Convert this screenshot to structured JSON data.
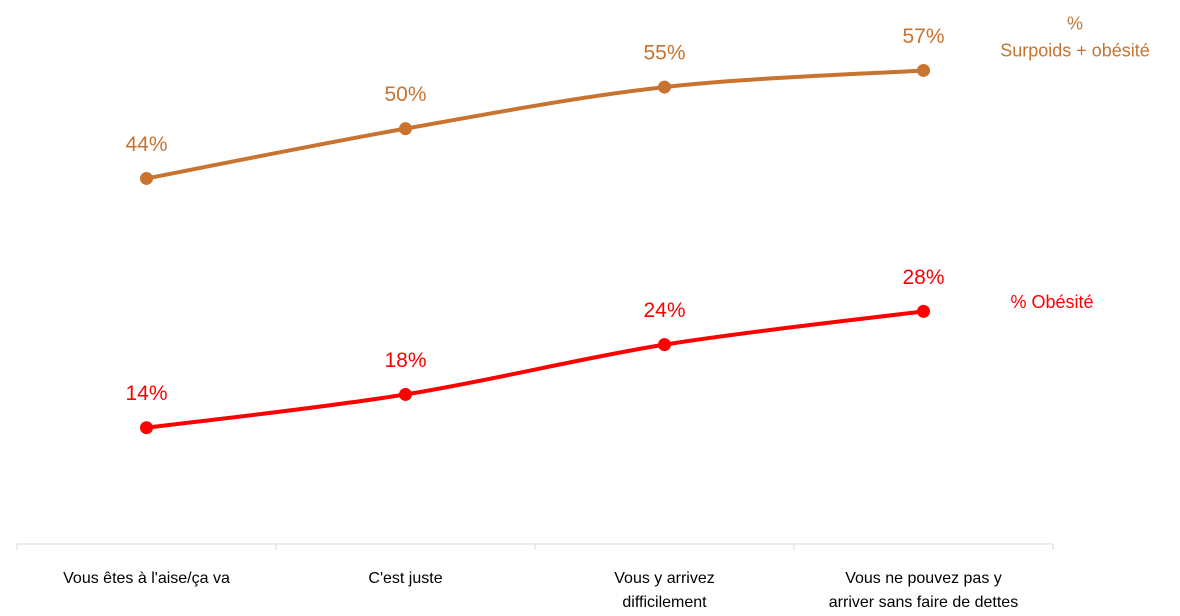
{
  "chart_data": {
    "type": "line",
    "categories": [
      "Vous êtes à l'aise/ça va",
      "C'est juste",
      "Vous y arrivez\ndifficilement",
      "Vous ne pouvez pas y\narriver sans faire de dettes"
    ],
    "series": [
      {
        "name": "%\nSurpoids + obésité",
        "color": "#C8732F",
        "values": [
          44,
          50,
          55,
          57
        ],
        "value_labels": [
          "44%",
          "50%",
          "55%",
          "57%"
        ]
      },
      {
        "name": "% Obésité",
        "color": "#FF0000",
        "values": [
          14,
          18,
          24,
          28
        ],
        "value_labels": [
          "14%",
          "18%",
          "24%",
          "28%"
        ]
      }
    ],
    "ylim": [
      0,
      65
    ],
    "grid": false,
    "smooth": true
  }
}
